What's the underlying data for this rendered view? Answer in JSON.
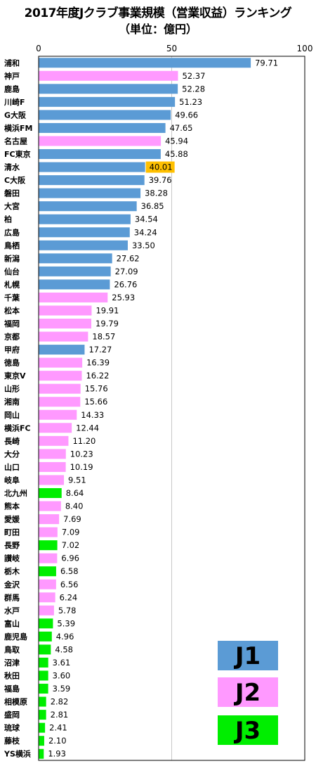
{
  "title": "2017年度Jクラブ事業規模（営業収益）ランキング",
  "subtitle": "（単位：億円）",
  "colors": {
    "J1": "#5b9bd5",
    "J2": "#ff99ff",
    "J3": "#00ee00",
    "highlight": "#ffc000"
  },
  "legend": [
    {
      "label": "J1",
      "color": "#5b9bd5"
    },
    {
      "label": "J2",
      "color": "#ff99ff"
    },
    {
      "label": "J3",
      "color": "#00ee00"
    }
  ],
  "chart_data": {
    "type": "bar",
    "orientation": "horizontal",
    "xlim": [
      0,
      100
    ],
    "ticks": [
      0,
      50,
      100
    ],
    "grid": "vertical line at 50",
    "legend_placement": "bottom-right",
    "highlighted_category": "清水",
    "categories": [
      "浦和",
      "神戸",
      "鹿島",
      "川崎F",
      "G大阪",
      "横浜FM",
      "名古屋",
      "FC東京",
      "清水",
      "C大阪",
      "磐田",
      "大宮",
      "柏",
      "広島",
      "鳥栖",
      "新潟",
      "仙台",
      "札幌",
      "千葉",
      "松本",
      "福岡",
      "京都",
      "甲府",
      "徳島",
      "東京V",
      "山形",
      "湘南",
      "岡山",
      "横浜FC",
      "長崎",
      "大分",
      "山口",
      "岐阜",
      "北九州",
      "熊本",
      "愛媛",
      "町田",
      "長野",
      "讃岐",
      "栃木",
      "金沢",
      "群馬",
      "水戸",
      "富山",
      "鹿児島",
      "鳥取",
      "沼津",
      "秋田",
      "福島",
      "相模原",
      "盛岡",
      "琉球",
      "藤枝",
      "YS横浜"
    ],
    "value_labels": [
      "79.71",
      "52.37",
      "52.28",
      "51.23",
      "49.66",
      "47.65",
      "45.94",
      "45.88",
      "40.01",
      "39.76",
      "38.28",
      "36.85",
      "34.54",
      "34.24",
      "33.50",
      "27.62",
      "27.09",
      "26.76",
      "25.93",
      "19.91",
      "19.79",
      "18.57",
      "17.27",
      "16.39",
      "16.22",
      "15.76",
      "15.66",
      "14.33",
      "12.44",
      "11.20",
      "10.23",
      "10.19",
      "9.51",
      "8.64",
      "8.40",
      "7.69",
      "7.09",
      "7.02",
      "6.96",
      "6.58",
      "6.56",
      "6.24",
      "5.78",
      "5.39",
      "4.96",
      "4.58",
      "3.61",
      "3.60",
      "3.59",
      "2.82",
      "2.81",
      "2.41",
      "2.10",
      "1.93"
    ],
    "values": [
      79.71,
      52.37,
      52.28,
      51.23,
      49.66,
      47.65,
      45.94,
      45.88,
      40.01,
      39.76,
      38.28,
      36.85,
      34.54,
      34.24,
      33.5,
      27.62,
      27.09,
      26.76,
      25.93,
      19.91,
      19.79,
      18.57,
      17.27,
      16.39,
      16.22,
      15.76,
      15.66,
      14.33,
      12.44,
      11.2,
      10.23,
      10.19,
      9.51,
      8.64,
      8.4,
      7.69,
      7.09,
      7.02,
      6.96,
      6.58,
      6.56,
      6.24,
      5.78,
      5.39,
      4.96,
      4.58,
      3.61,
      3.6,
      3.59,
      2.82,
      2.81,
      2.41,
      2.1,
      1.93
    ],
    "divisions": [
      "J1",
      "J2",
      "J1",
      "J1",
      "J1",
      "J1",
      "J2",
      "J1",
      "J1",
      "J1",
      "J1",
      "J1",
      "J1",
      "J1",
      "J1",
      "J1",
      "J1",
      "J1",
      "J2",
      "J2",
      "J2",
      "J2",
      "J1",
      "J2",
      "J2",
      "J2",
      "J2",
      "J2",
      "J2",
      "J2",
      "J2",
      "J2",
      "J2",
      "J3",
      "J2",
      "J2",
      "J2",
      "J3",
      "J2",
      "J3",
      "J2",
      "J2",
      "J2",
      "J3",
      "J3",
      "J3",
      "J3",
      "J3",
      "J3",
      "J3",
      "J3",
      "J3",
      "J3",
      "J3"
    ]
  }
}
